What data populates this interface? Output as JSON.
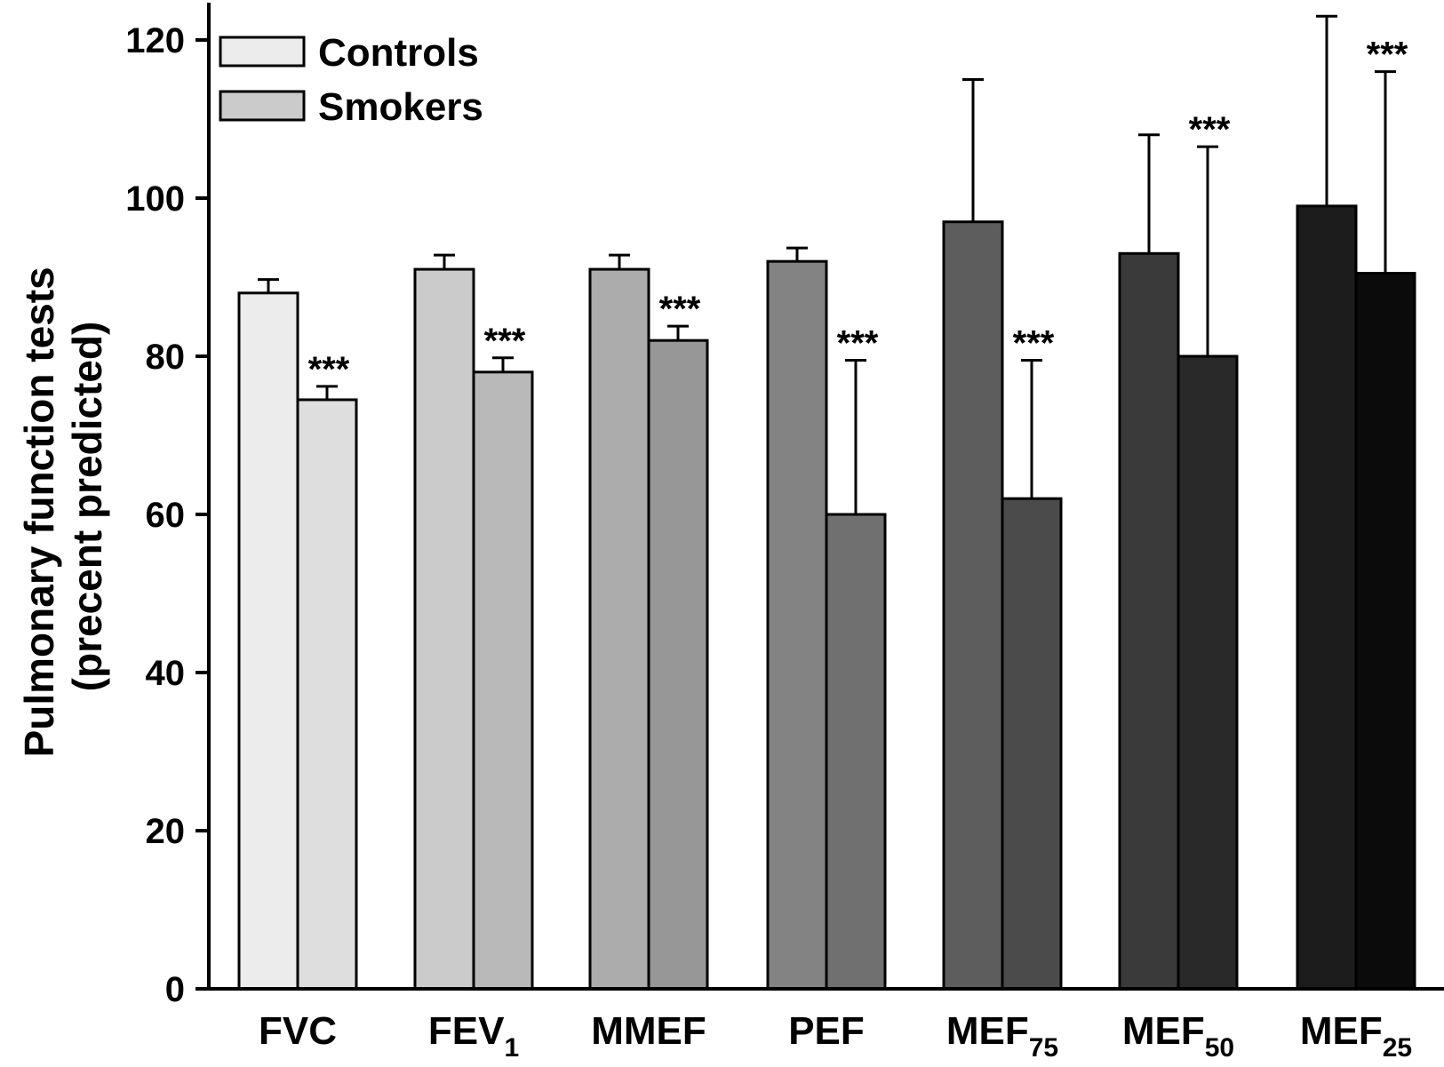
{
  "chart_data": {
    "type": "bar",
    "title": "",
    "ylabel_line1": "Pulmonary function tests",
    "ylabel_line2": "(precent predicted)",
    "xlabel": "",
    "ylim": [
      0,
      124
    ],
    "yticks": [
      0,
      20,
      40,
      60,
      80,
      100,
      120
    ],
    "categories": [
      {
        "main": "FVC",
        "sub": ""
      },
      {
        "main": "FEV",
        "sub": "1"
      },
      {
        "main": "MMEF",
        "sub": ""
      },
      {
        "main": "PEF",
        "sub": ""
      },
      {
        "main": "MEF",
        "sub": "75"
      },
      {
        "main": "MEF",
        "sub": "50"
      },
      {
        "main": "MEF",
        "sub": "25"
      }
    ],
    "series": [
      {
        "name": "Controls",
        "values": [
          88,
          91,
          91,
          92,
          97,
          93,
          99
        ],
        "error": [
          1.7,
          1.8,
          1.8,
          1.7,
          18,
          15,
          24
        ]
      },
      {
        "name": "Smokers",
        "values": [
          74.5,
          78,
          82,
          60,
          62,
          80,
          90.5
        ],
        "error": [
          1.7,
          1.8,
          1.8,
          19.5,
          17.5,
          26.5,
          25.5
        ]
      }
    ],
    "significance": [
      "***",
      "***",
      "***",
      "***",
      "***",
      "***",
      "***"
    ],
    "legend": {
      "position": "top-left",
      "entries": [
        "Controls",
        "Smokers"
      ]
    },
    "colors": {
      "controls": [
        "#ececec",
        "#cbcbcb",
        "#acacac",
        "#838383",
        "#5d5d5d",
        "#3a3a3a",
        "#1c1c1c"
      ],
      "smokers": [
        "#dedede",
        "#b9b9b9",
        "#979797",
        "#707070",
        "#4b4b4b",
        "#292929",
        "#0b0b0b"
      ],
      "legend_controls": "#ececec",
      "legend_smokers": "#cbcbcb",
      "stroke": "#000000"
    }
  }
}
